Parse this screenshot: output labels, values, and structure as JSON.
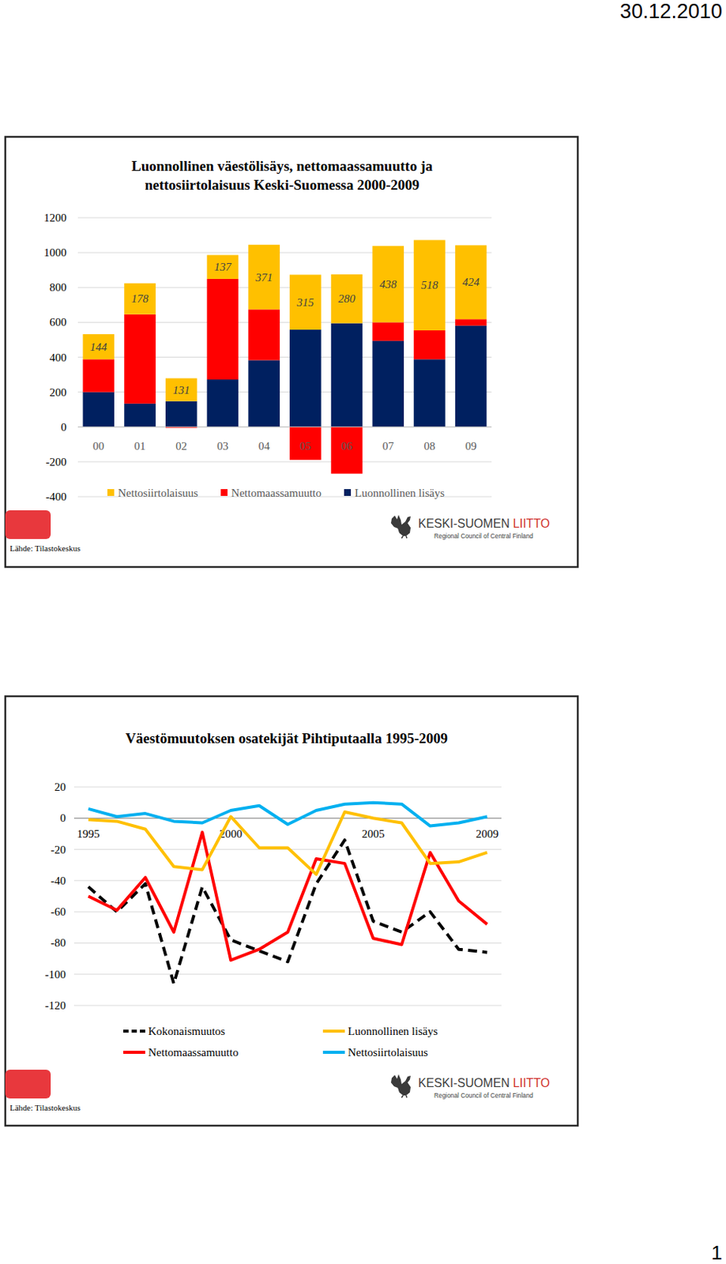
{
  "page": {
    "date": "30.12.2010",
    "page_number": 1
  },
  "slides": [
    {
      "source": "Lähde: Tilastokeskus",
      "logo": "KESKI-SUOMEN LIITTO",
      "logo_subtitle": "Regional Council of Central Finland"
    },
    {
      "source": "Lähde: Tilastokeskus",
      "logo": "KESKI-SUOMEN LIITTO",
      "logo_subtitle": "Regional Council of Central Finland"
    }
  ],
  "chart_data": [
    {
      "type": "bar",
      "title": "Luonnollinen väestölisäys, nettomaassamuutto ja nettosiirtolaisuus Keski-Suomessa 2000-2009",
      "categories": [
        "00",
        "01",
        "02",
        "03",
        "04",
        "05",
        "06",
        "07",
        "08",
        "09"
      ],
      "series": [
        {
          "name": "Nettosiirtolaisuus",
          "color": "#FFC000",
          "data_labels": true,
          "values": [
            144,
            178,
            131,
            137,
            371,
            315,
            280,
            438,
            518,
            424
          ]
        },
        {
          "name": "Nettomaassamuutto",
          "color": "#FF0000",
          "values": [
            188,
            512,
            -5,
            577,
            291,
            -189,
            -268,
            106,
            166,
            37
          ]
        },
        {
          "name": "Luonnollinen lisäys",
          "color": "#002060",
          "values": [
            200,
            134,
            148,
            272,
            383,
            558,
            595,
            494,
            388,
            581
          ]
        }
      ],
      "stacked": true,
      "ylim": [
        -400,
        1200
      ],
      "yticks": [
        -400,
        -200,
        0,
        200,
        400,
        600,
        800,
        1000,
        1200
      ],
      "grid": true,
      "legend": "bottom"
    },
    {
      "type": "line",
      "title": "Väestömuutoksen osatekijät Pihtiputaalla 1995-2009",
      "x": [
        1995,
        1996,
        1997,
        1998,
        1999,
        2000,
        2001,
        2002,
        2003,
        2004,
        2005,
        2006,
        2007,
        2008,
        2009
      ],
      "series": [
        {
          "name": "Kokonaismuutos",
          "color": "#000000",
          "line_style": "dashed",
          "values": [
            -44,
            -60,
            -42,
            -106,
            -44,
            -78,
            -85,
            -92,
            -42,
            -14,
            -66,
            -73,
            -60,
            -84,
            -86
          ]
        },
        {
          "name": "Nettomaassamuutto",
          "color": "#FF0000",
          "line_style": "solid",
          "values": [
            -50,
            -59,
            -38,
            -73,
            -9,
            -91,
            -84,
            -73,
            -26,
            -29,
            -77,
            -81,
            -22,
            -53,
            -68
          ]
        },
        {
          "name": "Luonnollinen lisäys",
          "color": "#FFC000",
          "line_style": "solid",
          "values": [
            -1,
            -2,
            -7,
            -31,
            -33,
            1,
            -19,
            -19,
            -36,
            4,
            0,
            -3,
            -29,
            -28,
            -22
          ]
        },
        {
          "name": "Nettosiirtolaisuus",
          "color": "#00B0F0",
          "line_style": "solid",
          "values": [
            6,
            1,
            3,
            -2,
            -3,
            5,
            8,
            -4,
            5,
            9,
            10,
            9,
            -5,
            -3,
            1
          ]
        }
      ],
      "xlim": [
        1994.5,
        2009.5
      ],
      "xticks": [
        1995,
        2000,
        2005,
        2009
      ],
      "ylim": [
        -120,
        20
      ],
      "yticks": [
        -120,
        -100,
        -80,
        -60,
        -40,
        -20,
        0,
        20
      ],
      "grid": true,
      "legend": "bottom"
    }
  ]
}
